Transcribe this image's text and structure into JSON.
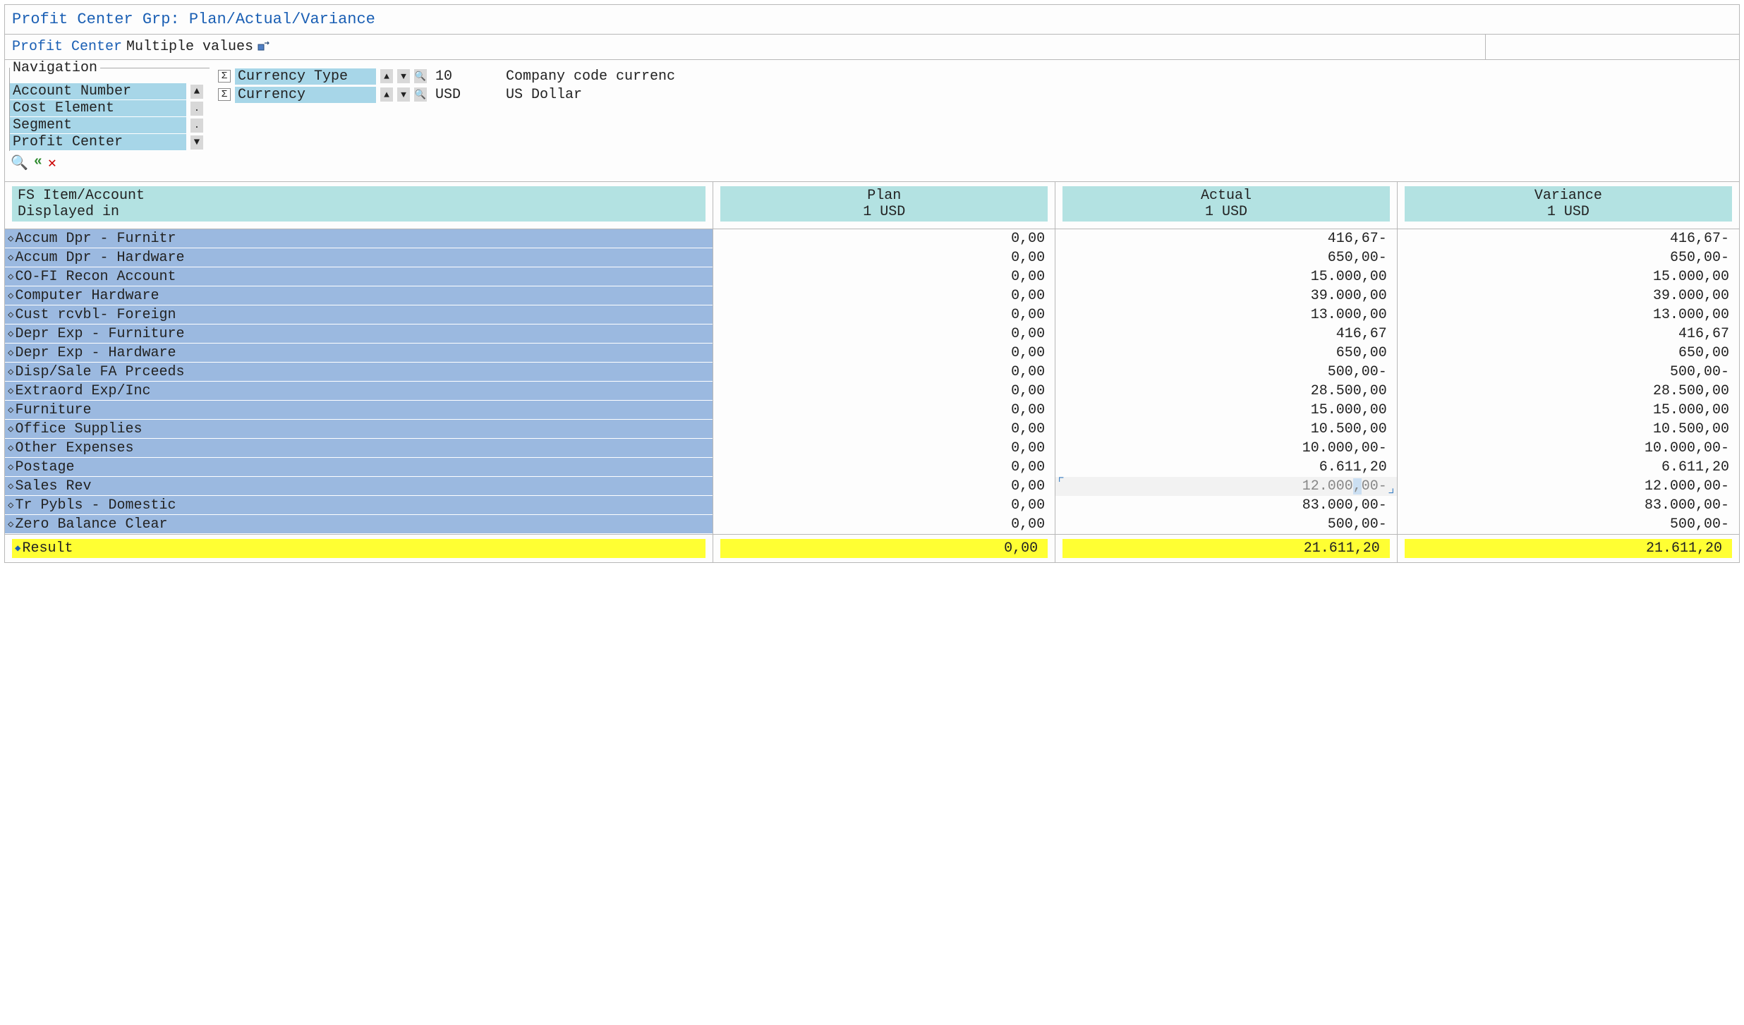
{
  "title": "Profit Center Grp: Plan/Actual/Variance",
  "selector": {
    "label": "Profit Center",
    "value": "Multiple values"
  },
  "navigation": {
    "legend": "Navigation",
    "items": [
      {
        "label": "Account Number",
        "glyph": "▲"
      },
      {
        "label": "Cost Element",
        "glyph": "."
      },
      {
        "label": "Segment",
        "glyph": "."
      },
      {
        "label": "Profit Center",
        "glyph": "▼"
      }
    ]
  },
  "filters": [
    {
      "label": "Currency Type",
      "value": "10",
      "desc": "Company code currenc"
    },
    {
      "label": "Currency",
      "value": "USD",
      "desc": "US Dollar"
    }
  ],
  "columns": {
    "account_header1": "FS Item/Account",
    "account_header2": "Displayed in",
    "plan_header1": "Plan",
    "plan_header2": "1 USD",
    "actual_header1": "Actual",
    "actual_header2": "1 USD",
    "variance_header1": "Variance",
    "variance_header2": "1 USD"
  },
  "rows": [
    {
      "name": "Accum Dpr - Furnitr",
      "plan": "0,00",
      "actual": "416,67-",
      "variance": "416,67-"
    },
    {
      "name": "Accum Dpr - Hardware",
      "plan": "0,00",
      "actual": "650,00-",
      "variance": "650,00-"
    },
    {
      "name": "CO-FI Recon Account",
      "plan": "0,00",
      "actual": "15.000,00",
      "variance": "15.000,00"
    },
    {
      "name": "Computer Hardware",
      "plan": "0,00",
      "actual": "39.000,00",
      "variance": "39.000,00"
    },
    {
      "name": "Cust rcvbl- Foreign",
      "plan": "0,00",
      "actual": "13.000,00",
      "variance": "13.000,00"
    },
    {
      "name": "Depr Exp - Furniture",
      "plan": "0,00",
      "actual": "416,67",
      "variance": "416,67"
    },
    {
      "name": "Depr Exp - Hardware",
      "plan": "0,00",
      "actual": "650,00",
      "variance": "650,00"
    },
    {
      "name": "Disp/Sale FA Prceeds",
      "plan": "0,00",
      "actual": "500,00-",
      "variance": "500,00-"
    },
    {
      "name": "Extraord Exp/Inc",
      "plan": "0,00",
      "actual": "28.500,00",
      "variance": "28.500,00"
    },
    {
      "name": "Furniture",
      "plan": "0,00",
      "actual": "15.000,00",
      "variance": "15.000,00"
    },
    {
      "name": "Office Supplies",
      "plan": "0,00",
      "actual": "10.500,00",
      "variance": "10.500,00"
    },
    {
      "name": "Other Expenses",
      "plan": "0,00",
      "actual": "10.000,00-",
      "variance": "10.000,00-"
    },
    {
      "name": "Postage",
      "plan": "0,00",
      "actual": "6.611,20",
      "variance": "6.611,20"
    },
    {
      "name": "Sales Rev",
      "plan": "0,00",
      "actual": "12.000,00-",
      "variance": "12.000,00-",
      "selected": true
    },
    {
      "name": "Tr Pybls - Domestic",
      "plan": "0,00",
      "actual": "83.000,00-",
      "variance": "83.000,00-"
    },
    {
      "name": "Zero Balance Clear",
      "plan": "0,00",
      "actual": "500,00-",
      "variance": "500,00-"
    }
  ],
  "result": {
    "label": "Result",
    "plan": "0,00",
    "actual": "21.611,20",
    "variance": "21.611,20"
  },
  "colors": {
    "title_text": "#1a5fb4",
    "nav_item_bg": "#a7d6e8",
    "header_bg": "#b3e2e2",
    "row_bg": "#9bb9e0",
    "result_bg": "#ffff33",
    "border": "#b8b8b8"
  }
}
